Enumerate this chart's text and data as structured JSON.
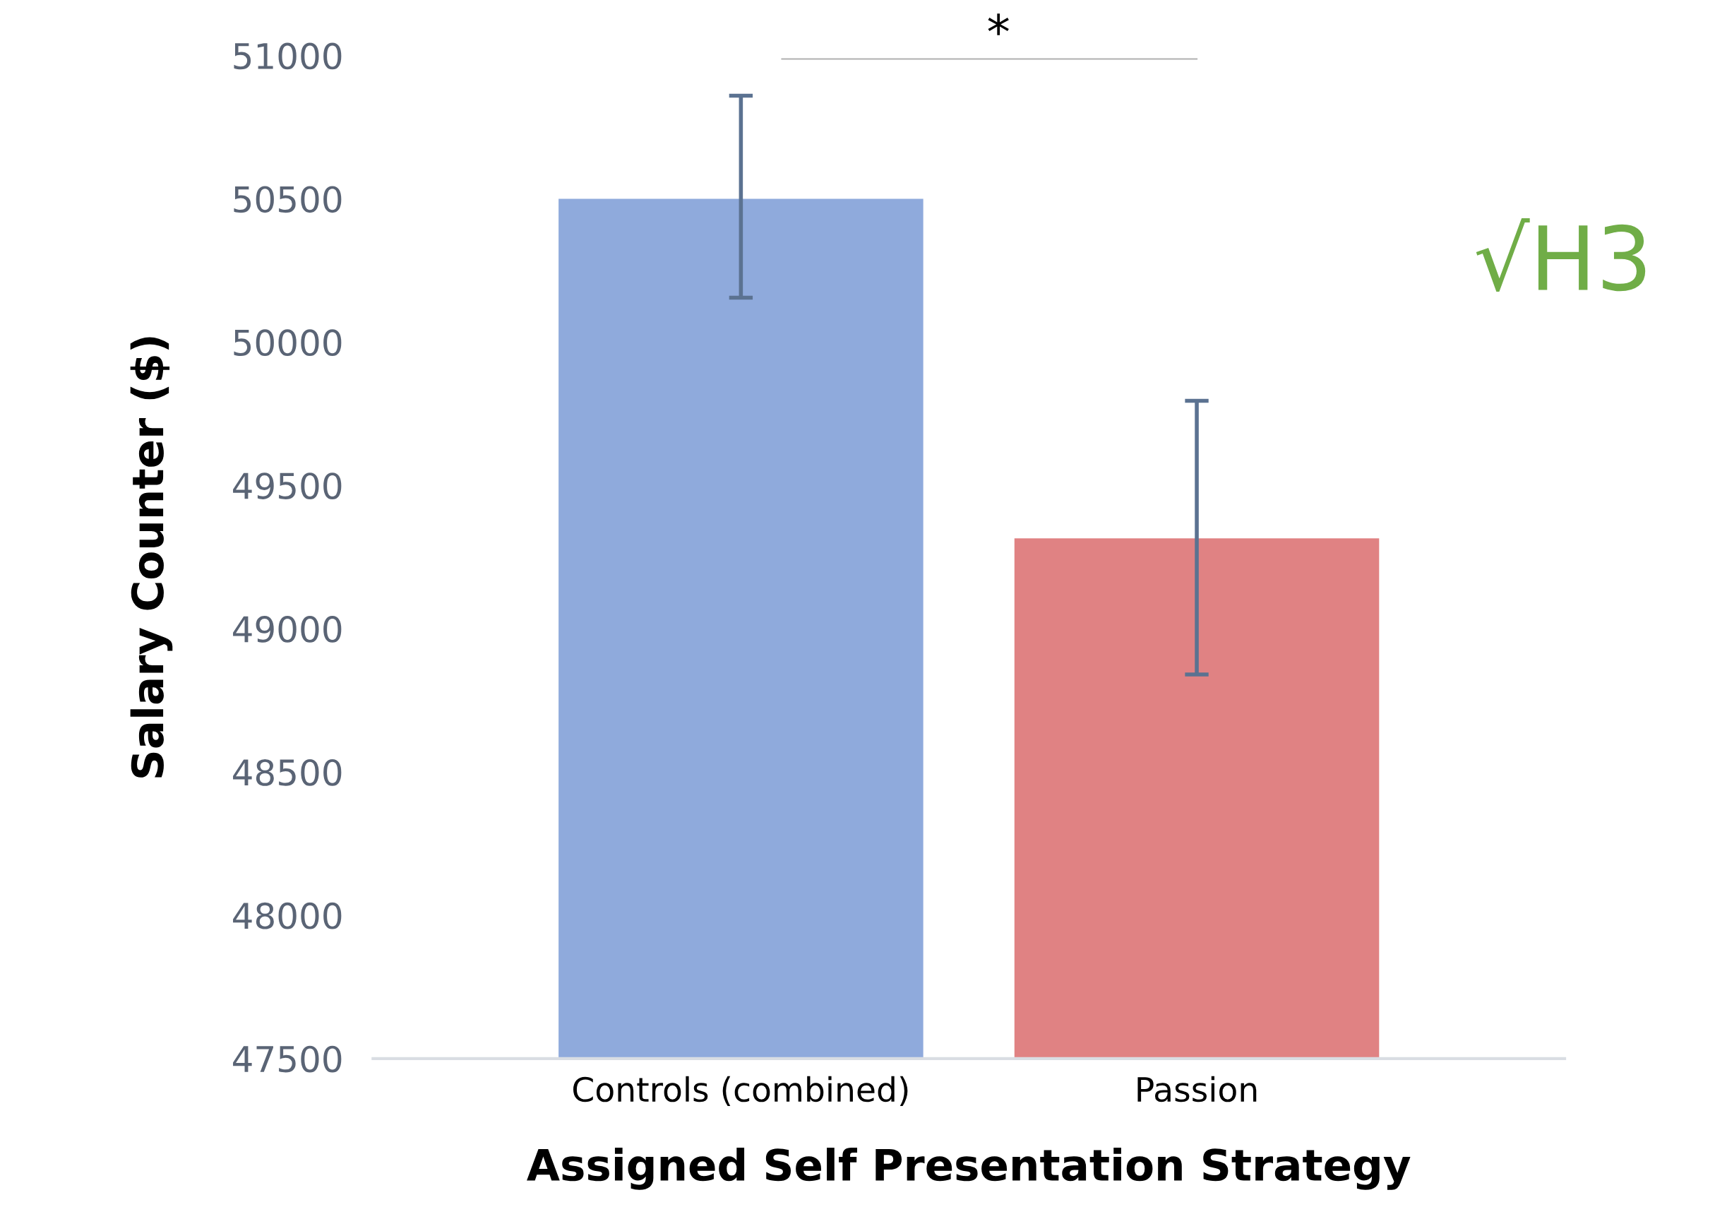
{
  "chart_data": {
    "type": "bar",
    "xlabel": "Assigned Self Presentation Strategy",
    "ylabel": "Salary Counter ($)",
    "categories": [
      "Controls (combined)",
      "Passion"
    ],
    "values": [
      50500,
      49315
    ],
    "colors": [
      "#8faadc",
      "#e08283"
    ],
    "errors": [
      [
        50155,
        50860
      ],
      [
        48840,
        49795
      ]
    ],
    "ylim": [
      47500,
      51000
    ],
    "yticks": [
      47500,
      48000,
      48500,
      49000,
      49500,
      50000,
      50500,
      51000
    ],
    "grid": false,
    "annotations": [
      "*",
      "√H3"
    ]
  }
}
